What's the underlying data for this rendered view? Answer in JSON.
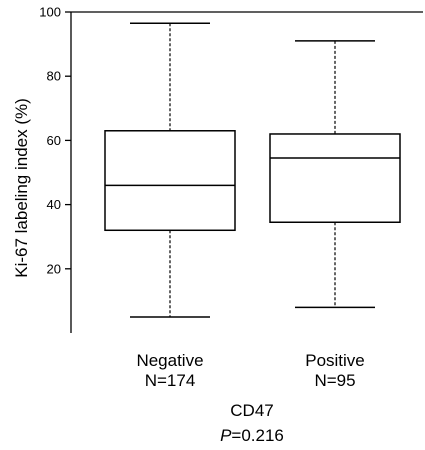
{
  "chart_data": {
    "type": "boxplot",
    "ylabel": "Ki-67 labeling index (%)",
    "ylim": [
      0,
      100
    ],
    "yticks": [
      "20",
      "40",
      "60",
      "80",
      "100"
    ],
    "categories": [
      {
        "name": "Negative",
        "n_label": "N=174"
      },
      {
        "name": "Positive",
        "n_label": "N=95"
      }
    ],
    "boxes": [
      {
        "whisker_low": 5,
        "q1": 32,
        "median": 46,
        "q3": 63,
        "whisker_high": 96.5
      },
      {
        "whisker_low": 8,
        "q1": 34.5,
        "median": 54.5,
        "q3": 62,
        "whisker_high": 91
      }
    ],
    "group_label": "CD47",
    "p_prefix": "P",
    "p_value": "=0.216"
  }
}
